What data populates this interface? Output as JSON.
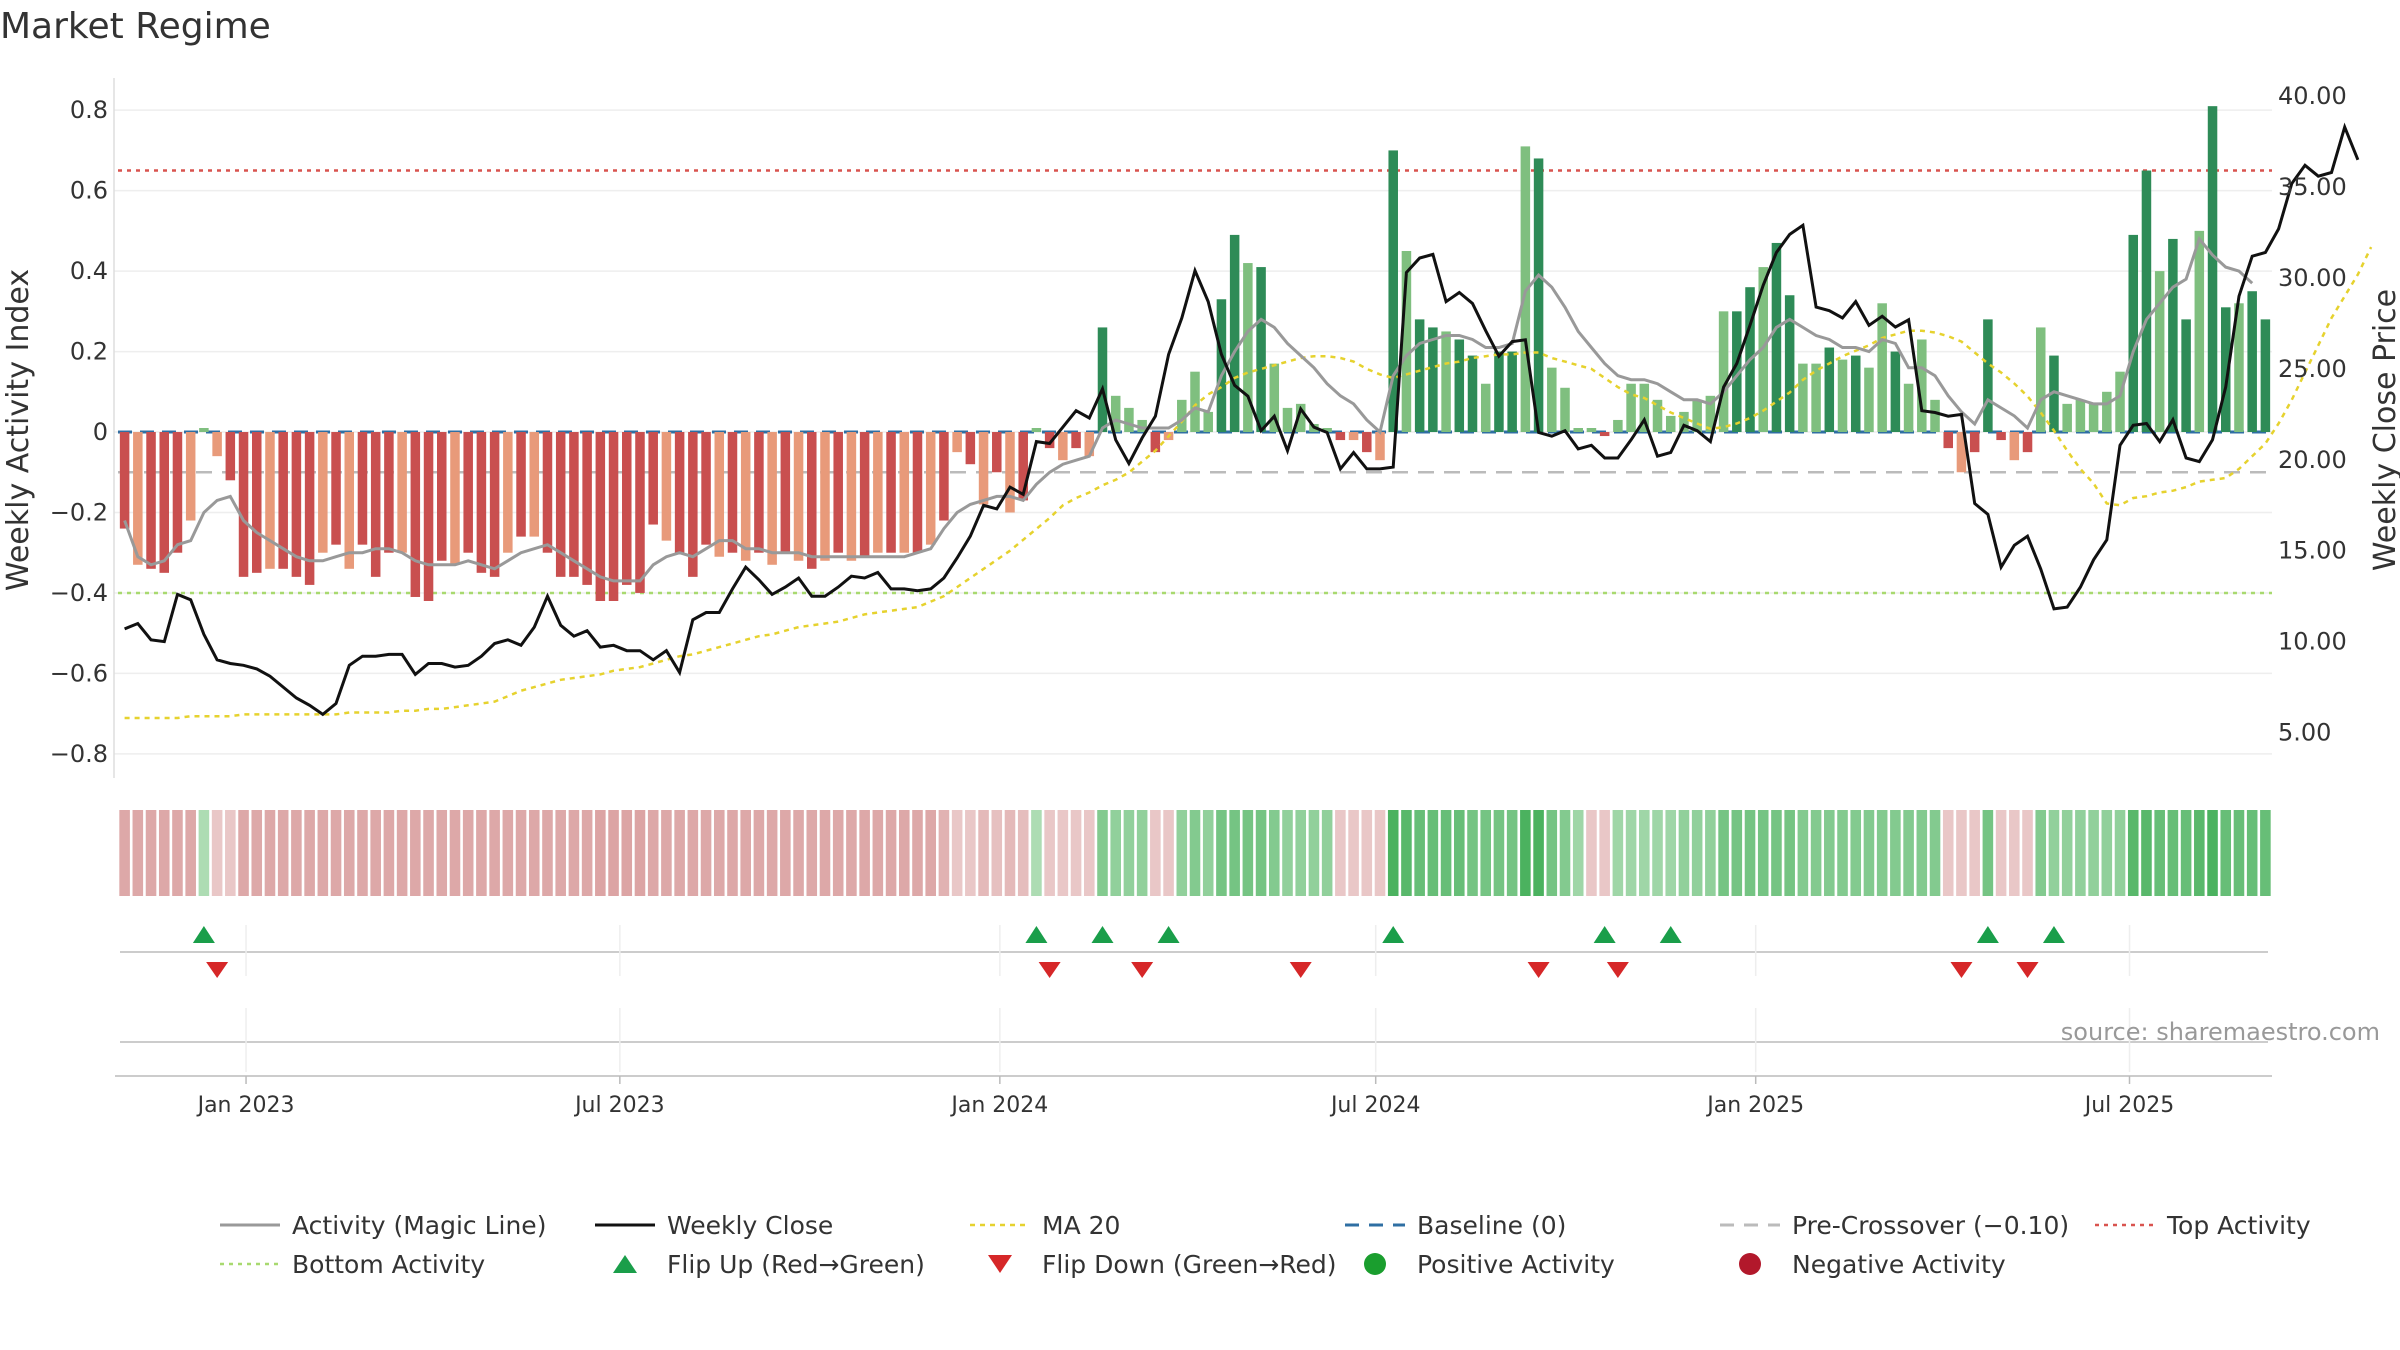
{
  "chart_data": {
    "type": "bar",
    "title": "Market Regime",
    "ylabel_left": "Weekly Activity Index",
    "ylabel_right": "Weekly Close Price",
    "source": "source: sharemaestro.com",
    "left_axis": {
      "range": [
        -0.86,
        0.88
      ],
      "ticks": [
        -0.8,
        -0.6,
        -0.4,
        -0.2,
        0,
        0.2,
        0.4,
        0.6,
        0.8
      ],
      "tick_labels": [
        "−0.8",
        "−0.6",
        "−0.4",
        "−0.2",
        "0",
        "0.2",
        "0.4",
        "0.6",
        "0.8"
      ]
    },
    "right_axis": {
      "range": [
        2.5,
        41.0
      ],
      "ticks": [
        5,
        10,
        15,
        20,
        25,
        30,
        35,
        40
      ],
      "tick_labels": [
        "5.00",
        "10.00",
        "15.00",
        "20.00",
        "25.00",
        "30.00",
        "35.00",
        "40.00"
      ]
    },
    "x_axis": {
      "start": "2022-10-31",
      "end": "2025-09-08",
      "ticks": [
        {
          "date": "2023-01-01",
          "label": "Jan 2023"
        },
        {
          "date": "2023-07-01",
          "label": "Jul 2023"
        },
        {
          "date": "2024-01-01",
          "label": "Jan 2024"
        },
        {
          "date": "2024-07-01",
          "label": "Jul 2024"
        },
        {
          "date": "2025-01-01",
          "label": "Jan 2025"
        },
        {
          "date": "2025-07-01",
          "label": "Jul 2025"
        }
      ]
    },
    "reference_lines": {
      "top_activity": 0.65,
      "bottom_activity": -0.4,
      "pre_crossover": -0.1,
      "baseline": 0
    },
    "activity_bars": [
      -0.24,
      -0.33,
      -0.34,
      -0.35,
      -0.3,
      -0.22,
      0.01,
      -0.06,
      -0.12,
      -0.36,
      -0.35,
      -0.34,
      -0.34,
      -0.36,
      -0.38,
      -0.3,
      -0.28,
      -0.34,
      -0.28,
      -0.36,
      -0.3,
      -0.3,
      -0.41,
      -0.42,
      -0.32,
      -0.33,
      -0.3,
      -0.35,
      -0.36,
      -0.3,
      -0.26,
      -0.26,
      -0.3,
      -0.36,
      -0.36,
      -0.38,
      -0.42,
      -0.42,
      -0.38,
      -0.4,
      -0.23,
      -0.27,
      -0.3,
      -0.36,
      -0.28,
      -0.31,
      -0.3,
      -0.32,
      -0.3,
      -0.33,
      -0.3,
      -0.32,
      -0.34,
      -0.32,
      -0.3,
      -0.32,
      -0.31,
      -0.3,
      -0.3,
      -0.3,
      -0.3,
      -0.28,
      -0.22,
      -0.05,
      -0.08,
      -0.18,
      -0.1,
      -0.2,
      -0.17,
      0.01,
      -0.04,
      -0.07,
      -0.04,
      -0.06,
      0.26,
      0.09,
      0.06,
      0.03,
      -0.05,
      -0.02,
      0.08,
      0.15,
      0.05,
      0.33,
      0.49,
      0.42,
      0.41,
      0.17,
      0.06,
      0.07,
      0.02,
      0.01,
      -0.02,
      -0.02,
      -0.05,
      -0.07,
      0.7,
      0.45,
      0.28,
      0.26,
      0.25,
      0.23,
      0.19,
      0.12,
      0.2,
      0.2,
      0.71,
      0.68,
      0.16,
      0.11,
      0.01,
      0.01,
      -0.01,
      0.03,
      0.12,
      0.12,
      0.08,
      0.04,
      0.05,
      0.08,
      0.09,
      0.3,
      0.3,
      0.36,
      0.41,
      0.47,
      0.34,
      0.17,
      0.17,
      0.21,
      0.18,
      0.19,
      0.16,
      0.32,
      0.2,
      0.12,
      0.23,
      0.08,
      -0.04,
      -0.1,
      -0.05,
      0.28,
      -0.02,
      -0.07,
      -0.05,
      0.26,
      0.19,
      0.07,
      0.08,
      0.07,
      0.1,
      0.15,
      0.49,
      0.65,
      0.4,
      0.48,
      0.28,
      0.5,
      0.81,
      0.31,
      0.32,
      0.35,
      0.28
    ],
    "magic_line": [
      -0.22,
      -0.31,
      -0.33,
      -0.32,
      -0.28,
      -0.27,
      -0.2,
      -0.17,
      -0.16,
      -0.22,
      -0.25,
      -0.27,
      -0.29,
      -0.31,
      -0.32,
      -0.32,
      -0.31,
      -0.3,
      -0.3,
      -0.29,
      -0.29,
      -0.3,
      -0.32,
      -0.33,
      -0.33,
      -0.33,
      -0.32,
      -0.33,
      -0.34,
      -0.32,
      -0.3,
      -0.29,
      -0.28,
      -0.3,
      -0.32,
      -0.34,
      -0.36,
      -0.37,
      -0.37,
      -0.37,
      -0.33,
      -0.31,
      -0.3,
      -0.31,
      -0.29,
      -0.27,
      -0.27,
      -0.29,
      -0.29,
      -0.3,
      -0.3,
      -0.3,
      -0.31,
      -0.31,
      -0.31,
      -0.31,
      -0.31,
      -0.31,
      -0.31,
      -0.31,
      -0.3,
      -0.29,
      -0.24,
      -0.2,
      -0.18,
      -0.17,
      -0.16,
      -0.16,
      -0.17,
      -0.13,
      -0.1,
      -0.08,
      -0.07,
      -0.06,
      0.01,
      0.03,
      0.02,
      0.01,
      0.01,
      0.01,
      0.03,
      0.06,
      0.05,
      0.14,
      0.2,
      0.25,
      0.28,
      0.26,
      0.22,
      0.19,
      0.16,
      0.12,
      0.09,
      0.07,
      0.03,
      0.0,
      0.14,
      0.19,
      0.22,
      0.23,
      0.24,
      0.24,
      0.23,
      0.21,
      0.21,
      0.22,
      0.35,
      0.39,
      0.36,
      0.31,
      0.25,
      0.21,
      0.17,
      0.14,
      0.13,
      0.13,
      0.12,
      0.1,
      0.08,
      0.08,
      0.07,
      0.1,
      0.14,
      0.18,
      0.21,
      0.26,
      0.28,
      0.26,
      0.24,
      0.23,
      0.21,
      0.21,
      0.2,
      0.23,
      0.22,
      0.16,
      0.16,
      0.14,
      0.09,
      0.05,
      0.02,
      0.08,
      0.06,
      0.04,
      0.01,
      0.08,
      0.1,
      0.09,
      0.08,
      0.07,
      0.07,
      0.09,
      0.2,
      0.28,
      0.32,
      0.36,
      0.38,
      0.48,
      0.44,
      0.41,
      0.4,
      0.37
    ],
    "weekly_close": [
      10.7,
      11.0,
      10.1,
      10.0,
      12.6,
      12.3,
      10.4,
      9.0,
      8.8,
      8.7,
      8.5,
      8.1,
      7.5,
      6.9,
      6.5,
      6.0,
      6.6,
      8.7,
      9.2,
      9.2,
      9.3,
      9.3,
      8.2,
      8.8,
      8.8,
      8.6,
      8.7,
      9.2,
      9.9,
      10.1,
      9.8,
      10.8,
      12.5,
      10.9,
      10.3,
      10.6,
      9.7,
      9.8,
      9.5,
      9.5,
      9.0,
      9.5,
      8.3,
      11.2,
      11.6,
      11.6,
      12.9,
      14.1,
      13.4,
      12.6,
      13.0,
      13.5,
      12.5,
      12.5,
      13.0,
      13.6,
      13.5,
      13.8,
      12.9,
      12.9,
      12.8,
      12.9,
      13.5,
      14.6,
      15.8,
      17.5,
      17.3,
      18.5,
      18.1,
      21.0,
      20.9,
      21.8,
      22.7,
      22.3,
      23.9,
      21.1,
      19.8,
      21.2,
      22.4,
      25.8,
      27.8,
      30.4,
      28.7,
      25.8,
      24.1,
      23.5,
      21.6,
      22.4,
      20.5,
      22.8,
      21.8,
      21.5,
      19.5,
      20.4,
      19.5,
      19.5,
      19.6,
      30.3,
      31.1,
      31.3,
      28.7,
      29.2,
      28.6,
      27.1,
      25.7,
      26.5,
      26.6,
      21.5,
      21.3,
      21.6,
      20.6,
      20.8,
      20.1,
      20.1,
      21.1,
      22.2,
      20.2,
      20.4,
      21.9,
      21.6,
      21.0,
      24.0,
      25.3,
      27.4,
      29.6,
      31.4,
      32.4,
      32.9,
      28.4,
      28.2,
      27.8,
      28.7,
      27.4,
      27.9,
      27.3,
      27.7,
      22.7,
      22.6,
      22.4,
      22.5,
      17.6,
      17.0,
      14.1,
      15.3,
      15.8,
      14.0,
      11.8,
      11.9,
      13.0,
      14.5,
      15.6,
      20.8,
      21.9,
      22.0,
      21.0,
      22.2,
      20.1,
      19.9,
      21.1,
      24.0,
      29.0,
      31.2,
      31.4,
      32.7,
      35.2,
      36.2,
      35.6,
      35.8,
      38.3,
      36.5
    ],
    "ma20": [
      5.8,
      5.8,
      5.8,
      5.8,
      5.8,
      5.9,
      5.9,
      5.9,
      5.9,
      6.0,
      6.0,
      6.0,
      6.0,
      6.0,
      6.0,
      6.0,
      6.0,
      6.1,
      6.1,
      6.1,
      6.1,
      6.2,
      6.2,
      6.3,
      6.3,
      6.4,
      6.5,
      6.6,
      6.7,
      7.0,
      7.3,
      7.5,
      7.7,
      7.9,
      8.0,
      8.1,
      8.2,
      8.4,
      8.5,
      8.6,
      8.8,
      9.0,
      9.2,
      9.3,
      9.5,
      9.7,
      9.9,
      10.1,
      10.3,
      10.4,
      10.6,
      10.8,
      10.9,
      11.0,
      11.1,
      11.3,
      11.5,
      11.6,
      11.7,
      11.8,
      11.9,
      12.2,
      12.5,
      13.0,
      13.5,
      14.0,
      14.5,
      15.0,
      15.6,
      16.2,
      16.8,
      17.5,
      17.9,
      18.2,
      18.6,
      18.9,
      19.3,
      19.9,
      20.5,
      21.3,
      22.1,
      23.0,
      23.6,
      24.0,
      24.5,
      24.8,
      25.0,
      25.2,
      25.4,
      25.6,
      25.7,
      25.7,
      25.6,
      25.4,
      25.0,
      24.7,
      24.5,
      24.7,
      24.9,
      25.1,
      25.3,
      25.4,
      25.6,
      25.7,
      25.8,
      25.8,
      25.9,
      25.9,
      25.6,
      25.4,
      25.2,
      25.0,
      24.5,
      24.0,
      23.6,
      23.4,
      23.0,
      22.6,
      22.3,
      22.0,
      21.7,
      21.8,
      22.0,
      22.3,
      22.7,
      23.2,
      23.7,
      24.4,
      24.9,
      25.3,
      25.7,
      26.0,
      26.3,
      26.7,
      26.9,
      27.1,
      27.1,
      27.0,
      26.8,
      26.5,
      25.9,
      25.3,
      24.8,
      24.2,
      23.5,
      22.6,
      21.6,
      20.5,
      19.5,
      18.7,
      17.6,
      17.5,
      17.9,
      18.0,
      18.2,
      18.3,
      18.5,
      18.8,
      18.9,
      19.0,
      19.5,
      20.2,
      20.9,
      22.0,
      23.3,
      24.8,
      26.3,
      27.8,
      29.0,
      30.2,
      31.7
    ],
    "regime_strip_intensity": [
      -0.75,
      -0.75,
      -0.75,
      -0.75,
      -0.75,
      -0.75,
      0.3,
      -0.3,
      -0.3,
      -0.75,
      -0.75,
      -0.75,
      -0.75,
      -0.75,
      -0.75,
      -0.75,
      -0.75,
      -0.75,
      -0.75,
      -0.75,
      -0.75,
      -0.75,
      -0.75,
      -0.75,
      -0.75,
      -0.75,
      -0.75,
      -0.75,
      -0.75,
      -0.75,
      -0.75,
      -0.75,
      -0.75,
      -0.75,
      -0.75,
      -0.75,
      -0.8,
      -0.8,
      -0.8,
      -0.8,
      -0.75,
      -0.75,
      -0.75,
      -0.75,
      -0.75,
      -0.75,
      -0.75,
      -0.75,
      -0.75,
      -0.75,
      -0.75,
      -0.75,
      -0.75,
      -0.75,
      -0.75,
      -0.75,
      -0.75,
      -0.75,
      -0.75,
      -0.75,
      -0.75,
      -0.75,
      -0.6,
      -0.3,
      -0.3,
      -0.5,
      -0.4,
      -0.5,
      -0.45,
      0.3,
      -0.3,
      -0.3,
      -0.3,
      -0.3,
      0.6,
      0.5,
      0.5,
      0.5,
      -0.3,
      -0.3,
      0.5,
      0.6,
      0.5,
      0.7,
      0.7,
      0.7,
      0.7,
      0.6,
      0.5,
      0.5,
      0.5,
      0.5,
      -0.3,
      -0.3,
      -0.3,
      -0.3,
      1.0,
      0.9,
      0.8,
      0.8,
      0.8,
      0.8,
      0.7,
      0.7,
      0.7,
      0.7,
      1.0,
      1.0,
      0.7,
      0.6,
      0.4,
      -0.3,
      -0.3,
      0.4,
      0.4,
      0.4,
      0.4,
      0.4,
      0.5,
      0.5,
      0.5,
      0.7,
      0.7,
      0.7,
      0.7,
      0.7,
      0.7,
      0.6,
      0.6,
      0.6,
      0.6,
      0.6,
      0.6,
      0.6,
      0.6,
      0.6,
      0.6,
      0.6,
      -0.3,
      -0.3,
      -0.3,
      0.7,
      -0.3,
      -0.3,
      -0.3,
      0.6,
      0.5,
      0.5,
      0.5,
      0.5,
      0.5,
      0.5,
      0.9,
      0.9,
      0.8,
      0.8,
      0.8,
      0.9,
      1.0,
      0.8,
      0.8,
      0.8,
      0.8
    ],
    "flip_up_index": [
      6,
      69,
      74,
      79,
      96,
      112,
      117,
      141,
      146
    ],
    "flip_down_index": [
      7,
      70,
      77,
      89,
      107,
      113,
      139,
      144
    ],
    "legend": [
      {
        "key": "magic",
        "label": "Activity (Magic Line)"
      },
      {
        "key": "close",
        "label": "Weekly Close"
      },
      {
        "key": "ma20",
        "label": "MA 20"
      },
      {
        "key": "baseline",
        "label": "Baseline (0)"
      },
      {
        "key": "precross",
        "label": "Pre-Crossover (−0.10)"
      },
      {
        "key": "top",
        "label": "Top Activity"
      },
      {
        "key": "bottom",
        "label": "Bottom Activity"
      },
      {
        "key": "flipup",
        "label": "Flip Up (Red→Green)"
      },
      {
        "key": "flipdown",
        "label": "Flip Down (Green→Red)"
      },
      {
        "key": "pos",
        "label": "Positive Activity"
      },
      {
        "key": "neg",
        "label": "Negative Activity"
      }
    ],
    "colors": {
      "pos_strong": "#2e8b57",
      "pos_light": "#7fbf7f",
      "neg_strong": "#c94f4f",
      "neg_light": "#e89a7a",
      "magic": "#999999",
      "close": "#111111",
      "ma20": "#e6d22e",
      "baseline": "#2f6fa3",
      "precross": "#bbbbbb",
      "top": "#d9534f",
      "bottom": "#a8d96f",
      "flip_up": "#1a9e4a",
      "flip_down": "#d62728",
      "pos_dot": "#1a9e2e",
      "neg_dot": "#b2182b"
    }
  }
}
